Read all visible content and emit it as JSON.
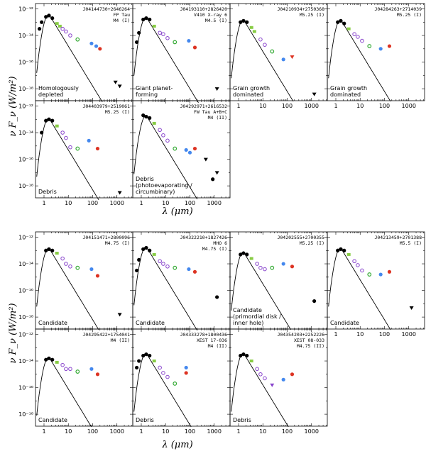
{
  "chart_data": {
    "type": "scatter",
    "x_label": "λ (μm)",
    "y_label": "ν F_ν (W/m²)",
    "x_ticks": [
      "1",
      "10",
      "100",
      "1000"
    ],
    "y_ticks_top": [
      "10⁻¹²",
      "10⁻¹⁴",
      "10⁻¹⁶",
      "10⁻¹⁸"
    ],
    "y_ticks_bottom": [
      "10⁻¹²",
      "10⁻¹⁴",
      "10⁻¹⁶",
      "10⁻¹⁸"
    ],
    "colors": {
      "black": "#000000",
      "ircs": "#88cc44",
      "irac": "#8844cc",
      "mips24": "#33aa33",
      "akari": "#4488ee",
      "pacs": "#dd3322"
    },
    "groups": [
      {
        "panels": [
          {
            "name": "J04144730+2646264",
            "alias": "FP Tau",
            "spt": "M4 (I)",
            "label": [
              "Homologously",
              "depleted"
            ],
            "points": [
              [
                0.65,
                -13.5,
                "black"
              ],
              [
                0.8,
                -13.0,
                "black"
              ],
              [
                1.2,
                -12.6,
                "black"
              ],
              [
                1.6,
                -12.5,
                "black"
              ],
              [
                2.2,
                -12.7,
                "black"
              ],
              [
                3.4,
                -13.1,
                "ircs"
              ],
              [
                4.5,
                -13.3,
                "ircs"
              ],
              [
                5.8,
                -13.5,
                "irac"
              ],
              [
                8,
                -13.7,
                "irac"
              ],
              [
                12,
                -14.0,
                "irac"
              ],
              [
                24,
                -14.3,
                "mips24"
              ],
              [
                90,
                -14.6,
                "akari"
              ],
              [
                140,
                -14.8,
                "akari"
              ],
              [
                200,
                -15.0,
                "pacs"
              ],
              [
                870,
                -17.5,
                "tri"
              ],
              [
                1300,
                -17.8,
                "tri"
              ]
            ]
          },
          {
            "name": "J04193110+2826420",
            "alias": "V410 X-ray 6",
            "spt": "M4.5 (I)",
            "label": [
              "Giant planet-",
              "forming"
            ],
            "points": [
              [
                0.65,
                -14.5,
                "black"
              ],
              [
                0.8,
                -13.8,
                "black"
              ],
              [
                1.2,
                -12.8,
                "black"
              ],
              [
                1.6,
                -12.7,
                "black"
              ],
              [
                2.2,
                -12.8,
                "black"
              ],
              [
                3.4,
                -13.3,
                "ircs"
              ],
              [
                5.8,
                -13.8,
                "irac"
              ],
              [
                8,
                -13.9,
                "irac"
              ],
              [
                12,
                -14.2,
                "irac"
              ],
              [
                24,
                -14.5,
                "mips24"
              ],
              [
                90,
                -14.4,
                "akari"
              ],
              [
                160,
                -14.9,
                "pacs"
              ],
              [
                1300,
                -18.0,
                "tri"
              ]
            ]
          },
          {
            "name": "J04210934+2750368",
            "alias": "",
            "spt": "M5.25 (I)",
            "label": [
              "Grain growth",
              "dominated"
            ],
            "points": [
              [
                1.2,
                -13.0,
                "black"
              ],
              [
                1.6,
                -12.9,
                "black"
              ],
              [
                2.2,
                -13.0,
                "black"
              ],
              [
                3.4,
                -13.4,
                "ircs"
              ],
              [
                4.5,
                -13.7,
                "ircs"
              ],
              [
                8,
                -14.3,
                "irac"
              ],
              [
                12,
                -14.7,
                "irac"
              ],
              [
                24,
                -15.2,
                "mips24"
              ],
              [
                70,
                -15.8,
                "akari"
              ],
              [
                160,
                -15.6,
                "pacsdown"
              ],
              [
                1300,
                -18.4,
                "tri"
              ]
            ]
          },
          {
            "name": "J04284263+2714039",
            "alias": "",
            "spt": "M5.25 (I)",
            "label": [
              "Grain growth",
              "dominated"
            ],
            "points": [
              [
                1.2,
                -13.0,
                "black"
              ],
              [
                1.6,
                -12.9,
                "black"
              ],
              [
                2.2,
                -13.1,
                "black"
              ],
              [
                3.4,
                -13.5,
                "ircs"
              ],
              [
                5.8,
                -13.9,
                "irac"
              ],
              [
                8,
                -14.1,
                "irac"
              ],
              [
                12,
                -14.4,
                "irac"
              ],
              [
                24,
                -14.8,
                "mips24"
              ],
              [
                70,
                -15.0,
                "akari"
              ],
              [
                160,
                -14.8,
                "pacs"
              ]
            ]
          }
        ]
      },
      {
        "panels": [
          {
            "name": "J04403979+2519061",
            "alias": "",
            "spt": "M5.25 (I)",
            "label": [
              "Debris"
            ],
            "points": [
              [
                0.8,
                -14.0,
                "black"
              ],
              [
                1.2,
                -13.1,
                "black"
              ],
              [
                1.6,
                -13.0,
                "black"
              ],
              [
                2.2,
                -13.1,
                "black"
              ],
              [
                3.4,
                -13.5,
                "ircs"
              ],
              [
                5.8,
                -14.0,
                "irac"
              ],
              [
                8,
                -14.4,
                "irac"
              ],
              [
                12,
                -15.1,
                "irac"
              ],
              [
                24,
                -15.2,
                "mips24"
              ],
              [
                70,
                -14.6,
                "akari"
              ],
              [
                160,
                -15.2,
                "pacs"
              ],
              [
                1300,
                -18.5,
                "tri"
              ]
            ]
          },
          {
            "name": "J04292971+2616532",
            "alias": "FW Tau A+B+C",
            "spt": "M4 (II)",
            "label": [
              "Debris",
              "(photoevaporating /",
              "circumbinary)"
            ],
            "points": [
              [
                1.2,
                -12.7,
                "black"
              ],
              [
                1.6,
                -12.8,
                "black"
              ],
              [
                2.2,
                -12.9,
                "black"
              ],
              [
                3.4,
                -13.3,
                "ircs"
              ],
              [
                5.8,
                -13.8,
                "irac"
              ],
              [
                8,
                -14.2,
                "irac"
              ],
              [
                12,
                -14.6,
                "irac"
              ],
              [
                24,
                -15.2,
                "mips24"
              ],
              [
                70,
                -15.3,
                "akari"
              ],
              [
                100,
                -15.5,
                "akari"
              ],
              [
                160,
                -15.2,
                "pacs"
              ],
              [
                450,
                -16.0,
                "tri"
              ],
              [
                870,
                -17.5,
                "black"
              ],
              [
                1300,
                -17.0,
                "tri"
              ]
            ]
          }
        ]
      },
      {
        "panels": [
          {
            "name": "J04151471+2800096",
            "alias": "",
            "spt": "M4.75 (I)",
            "label": [
              "Candidate"
            ],
            "points": [
              [
                1.2,
                -13.0,
                "black"
              ],
              [
                1.6,
                -12.9,
                "black"
              ],
              [
                2.2,
                -13.0,
                "black"
              ],
              [
                3.4,
                -13.2,
                "ircs"
              ],
              [
                5.8,
                -13.6,
                "irac"
              ],
              [
                8,
                -14.0,
                "irac"
              ],
              [
                12,
                -14.2,
                "irac"
              ],
              [
                24,
                -14.3,
                "mips24"
              ],
              [
                90,
                -14.4,
                "akari"
              ],
              [
                160,
                -14.9,
                "pacs"
              ],
              [
                1300,
                -17.8,
                "tri"
              ]
            ]
          },
          {
            "name": "J04322210+1827426",
            "alias": "MHO 6",
            "spt": "M4.75 (I)",
            "label": [
              "Candidate"
            ],
            "points": [
              [
                0.65,
                -14.5,
                "black"
              ],
              [
                0.8,
                -13.7,
                "black"
              ],
              [
                1.2,
                -12.9,
                "black"
              ],
              [
                1.6,
                -12.8,
                "black"
              ],
              [
                2.2,
                -13.0,
                "black"
              ],
              [
                3.4,
                -13.3,
                "ircs"
              ],
              [
                5.8,
                -13.8,
                "irac"
              ],
              [
                8,
                -14.0,
                "irac"
              ],
              [
                12,
                -14.2,
                "irac"
              ],
              [
                24,
                -14.3,
                "mips24"
              ],
              [
                90,
                -14.4,
                "akari"
              ],
              [
                160,
                -14.6,
                "pacs"
              ],
              [
                1300,
                -16.5,
                "black"
              ]
            ]
          },
          {
            "name": "J04202555+2700355",
            "alias": "",
            "spt": "M5.25 (I)",
            "label": [
              "Candidate",
              "(primordial disk /",
              "inner hole)"
            ],
            "points": [
              [
                1.2,
                -13.3,
                "black"
              ],
              [
                1.6,
                -13.2,
                "black"
              ],
              [
                2.2,
                -13.3,
                "black"
              ],
              [
                3.4,
                -13.6,
                "ircs"
              ],
              [
                5.8,
                -14.0,
                "irac"
              ],
              [
                8,
                -14.3,
                "irac"
              ],
              [
                12,
                -14.4,
                "irac"
              ],
              [
                24,
                -14.3,
                "mips24"
              ],
              [
                70,
                -14.0,
                "akari"
              ],
              [
                160,
                -14.2,
                "pacs"
              ],
              [
                1300,
                -16.8,
                "black"
              ]
            ]
          },
          {
            "name": "J04213459+2701388",
            "alias": "",
            "spt": "M5.5 (I)",
            "label": [
              "Candidate"
            ],
            "points": [
              [
                1.2,
                -13.0,
                "black"
              ],
              [
                1.6,
                -12.9,
                "black"
              ],
              [
                2.2,
                -13.0,
                "black"
              ],
              [
                3.4,
                -13.3,
                "ircs"
              ],
              [
                5.8,
                -13.8,
                "irac"
              ],
              [
                8,
                -14.1,
                "irac"
              ],
              [
                12,
                -14.5,
                "irac"
              ],
              [
                24,
                -14.8,
                "mips24"
              ],
              [
                70,
                -14.8,
                "akari"
              ],
              [
                160,
                -14.6,
                "pacs"
              ],
              [
                1300,
                -17.3,
                "tri"
              ]
            ]
          }
        ]
      },
      {
        "panels": [
          {
            "name": "J04295422+1754041",
            "alias": "",
            "spt": "M4 (II)",
            "label": [
              "Candidate"
            ],
            "points": [
              [
                1.2,
                -13.9,
                "black"
              ],
              [
                1.6,
                -13.8,
                "black"
              ],
              [
                2.2,
                -13.9,
                "black"
              ],
              [
                3.4,
                -14.1,
                "ircs"
              ],
              [
                5.8,
                -14.3,
                "irac"
              ],
              [
                8,
                -14.6,
                "irac"
              ],
              [
                12,
                -14.6,
                "irac"
              ],
              [
                24,
                -14.8,
                "mips24"
              ],
              [
                90,
                -14.6,
                "akari"
              ],
              [
                160,
                -15.0,
                "pacs"
              ]
            ]
          },
          {
            "name": "J04333278+1800436",
            "alias": "XEST 17-036",
            "spt": "M4 (II)",
            "label": [
              "Debris"
            ],
            "points": [
              [
                0.65,
                -14.5,
                "black"
              ],
              [
                0.8,
                -14.0,
                "black"
              ],
              [
                1.2,
                -13.6,
                "black"
              ],
              [
                1.6,
                -13.5,
                "black"
              ],
              [
                2.2,
                -13.6,
                "black"
              ],
              [
                3.4,
                -14.0,
                "ircs"
              ],
              [
                5.8,
                -14.5,
                "irac"
              ],
              [
                8,
                -14.9,
                "irac"
              ],
              [
                12,
                -15.2,
                "irac"
              ],
              [
                24,
                -15.7,
                "mips24"
              ],
              [
                70,
                -14.5,
                "akari"
              ],
              [
                70,
                -14.9,
                "pacs"
              ]
            ]
          },
          {
            "name": "J04354203+2252226",
            "alias": "XEST 08-033",
            "spt": "M4.75 (II)",
            "label": [
              "Debris"
            ],
            "points": [
              [
                1.2,
                -13.6,
                "black"
              ],
              [
                1.6,
                -13.5,
                "black"
              ],
              [
                2.2,
                -13.6,
                "black"
              ],
              [
                3.4,
                -14.0,
                "ircs"
              ],
              [
                5.8,
                -14.6,
                "irac"
              ],
              [
                8,
                -15.0,
                "irac"
              ],
              [
                12,
                -15.3,
                "irac"
              ],
              [
                24,
                -15.8,
                "triblue"
              ],
              [
                70,
                -15.4,
                "akari"
              ],
              [
                160,
                -15.0,
                "pacs"
              ]
            ]
          }
        ]
      }
    ]
  }
}
